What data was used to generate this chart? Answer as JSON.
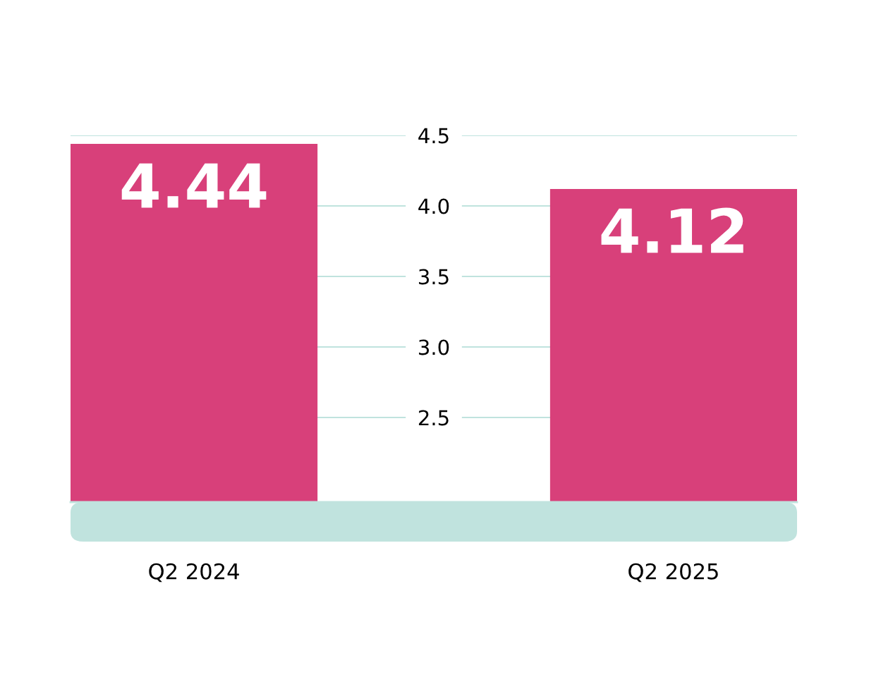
{
  "chart_data": {
    "type": "bar",
    "categories": [
      "Q2 2024",
      "Q2 2025"
    ],
    "values": [
      4.44,
      4.12
    ],
    "color": "#d8407a",
    "ylim": [
      1.9,
      4.5
    ],
    "yticks": [
      2.5,
      {
        "value": 3,
        "label": "3.0"
      },
      3.5,
      {
        "value": 4,
        "label": "4.0"
      },
      4.5
    ],
    "grid": "y",
    "data_labels": true
  }
}
